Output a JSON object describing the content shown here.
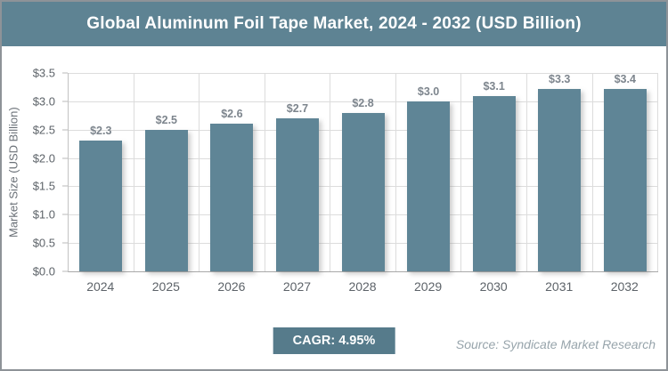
{
  "header": {
    "title": "Global Aluminum Foil Tape Market, 2024 - 2032 (USD Billion)"
  },
  "chart_data": {
    "type": "bar",
    "title": "Global Aluminum Foil Tape Market, 2024 - 2032 (USD Billion)",
    "categories": [
      "2024",
      "2025",
      "2026",
      "2027",
      "2028",
      "2029",
      "2030",
      "2031",
      "2032"
    ],
    "values": [
      2.3,
      2.5,
      2.6,
      2.7,
      2.8,
      3.0,
      3.1,
      3.3,
      3.4
    ],
    "value_labels": [
      "$2.3",
      "$2.5",
      "$2.6",
      "$2.7",
      "$2.8",
      "$3.0",
      "$3.1",
      "$3.3",
      "$3.4"
    ],
    "xlabel": "",
    "ylabel": "Market Size (USD Billion)",
    "ylim": [
      0,
      3.5
    ],
    "ytick_step": 0.5,
    "ytick_labels": [
      "$0.0",
      "$0.5",
      "$1.0",
      "$1.5",
      "$2.0",
      "$2.5",
      "$3.0",
      "$3.5"
    ],
    "grid": true,
    "legend": "none",
    "bar_color": "#5f8596"
  },
  "footer": {
    "cagr_label": "CAGR: 4.95%",
    "source": "Source: Syndicate Market Research"
  },
  "colors": {
    "banner_bg": "#5e8393",
    "badge_bg": "#567b8b",
    "bar": "#5f8596",
    "gridline": "#dcdcdc",
    "axis_text": "#5d6369",
    "value_label": "#7d858d"
  }
}
